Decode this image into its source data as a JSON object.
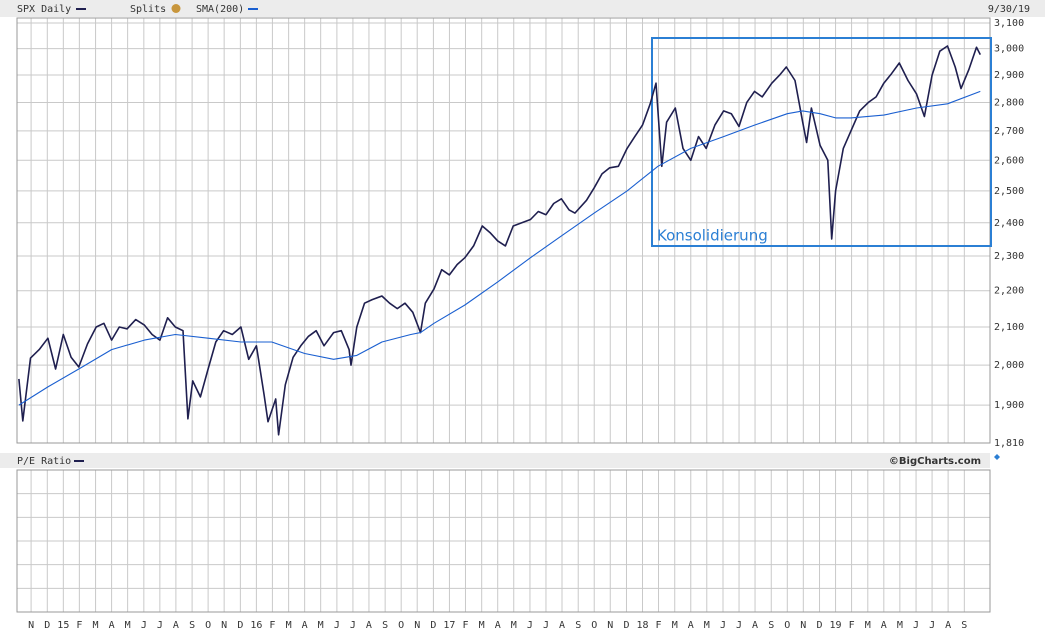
{
  "chart_data": {
    "type": "line",
    "date_label": "9/30/19",
    "splits_label": "Splits",
    "lower_panel_title": "P/E Ratio",
    "source": "©BigCharts.com",
    "annotation": "Konsolidierung",
    "log_scale": true,
    "grid": true,
    "xlim": [
      2014.76,
      2019.8
    ],
    "ylim": [
      1810,
      3100
    ],
    "yticks": [
      {
        "value": 3100,
        "label": "3,100"
      },
      {
        "value": 3000,
        "label": "3,000"
      },
      {
        "value": 2900,
        "label": "2,900"
      },
      {
        "value": 2800,
        "label": "2,800"
      },
      {
        "value": 2700,
        "label": "2,700"
      },
      {
        "value": 2600,
        "label": "2,600"
      },
      {
        "value": 2500,
        "label": "2,500"
      },
      {
        "value": 2400,
        "label": "2,400"
      },
      {
        "value": 2300,
        "label": "2,300"
      },
      {
        "value": 2200,
        "label": "2,200"
      },
      {
        "value": 2100,
        "label": "2,100"
      },
      {
        "value": 2000,
        "label": "2,000"
      },
      {
        "value": 1900,
        "label": "1,900"
      },
      {
        "value": 1810,
        "label": "1,810"
      }
    ],
    "xticks": [
      {
        "value": 2014.833,
        "label": "N"
      },
      {
        "value": 2014.917,
        "label": "D"
      },
      {
        "value": 2015.0,
        "label": "15"
      },
      {
        "value": 2015.083,
        "label": "F"
      },
      {
        "value": 2015.167,
        "label": "M"
      },
      {
        "value": 2015.25,
        "label": "A"
      },
      {
        "value": 2015.333,
        "label": "M"
      },
      {
        "value": 2015.417,
        "label": "J"
      },
      {
        "value": 2015.5,
        "label": "J"
      },
      {
        "value": 2015.583,
        "label": "A"
      },
      {
        "value": 2015.667,
        "label": "S"
      },
      {
        "value": 2015.75,
        "label": "O"
      },
      {
        "value": 2015.833,
        "label": "N"
      },
      {
        "value": 2015.917,
        "label": "D"
      },
      {
        "value": 2016.0,
        "label": "16"
      },
      {
        "value": 2016.083,
        "label": "F"
      },
      {
        "value": 2016.167,
        "label": "M"
      },
      {
        "value": 2016.25,
        "label": "A"
      },
      {
        "value": 2016.333,
        "label": "M"
      },
      {
        "value": 2016.417,
        "label": "J"
      },
      {
        "value": 2016.5,
        "label": "J"
      },
      {
        "value": 2016.583,
        "label": "A"
      },
      {
        "value": 2016.667,
        "label": "S"
      },
      {
        "value": 2016.75,
        "label": "O"
      },
      {
        "value": 2016.833,
        "label": "N"
      },
      {
        "value": 2016.917,
        "label": "D"
      },
      {
        "value": 2017.0,
        "label": "17"
      },
      {
        "value": 2017.083,
        "label": "F"
      },
      {
        "value": 2017.167,
        "label": "M"
      },
      {
        "value": 2017.25,
        "label": "A"
      },
      {
        "value": 2017.333,
        "label": "M"
      },
      {
        "value": 2017.417,
        "label": "J"
      },
      {
        "value": 2017.5,
        "label": "J"
      },
      {
        "value": 2017.583,
        "label": "A"
      },
      {
        "value": 2017.667,
        "label": "S"
      },
      {
        "value": 2017.75,
        "label": "O"
      },
      {
        "value": 2017.833,
        "label": "N"
      },
      {
        "value": 2017.917,
        "label": "D"
      },
      {
        "value": 2018.0,
        "label": "18"
      },
      {
        "value": 2018.083,
        "label": "F"
      },
      {
        "value": 2018.167,
        "label": "M"
      },
      {
        "value": 2018.25,
        "label": "A"
      },
      {
        "value": 2018.333,
        "label": "M"
      },
      {
        "value": 2018.417,
        "label": "J"
      },
      {
        "value": 2018.5,
        "label": "J"
      },
      {
        "value": 2018.583,
        "label": "A"
      },
      {
        "value": 2018.667,
        "label": "S"
      },
      {
        "value": 2018.75,
        "label": "O"
      },
      {
        "value": 2018.833,
        "label": "N"
      },
      {
        "value": 2018.917,
        "label": "D"
      },
      {
        "value": 2019.0,
        "label": "19"
      },
      {
        "value": 2019.083,
        "label": "F"
      },
      {
        "value": 2019.167,
        "label": "M"
      },
      {
        "value": 2019.25,
        "label": "A"
      },
      {
        "value": 2019.333,
        "label": "M"
      },
      {
        "value": 2019.417,
        "label": "J"
      },
      {
        "value": 2019.5,
        "label": "J"
      },
      {
        "value": 2019.583,
        "label": "A"
      },
      {
        "value": 2019.667,
        "label": "S"
      }
    ],
    "series": [
      {
        "name": "SPX Daily",
        "color": "#1f1f4f",
        "x": [
          2014.77,
          2014.79,
          2014.83,
          2014.875,
          2014.92,
          2014.96,
          2015.0,
          2015.04,
          2015.08,
          2015.125,
          2015.17,
          2015.21,
          2015.25,
          2015.29,
          2015.33,
          2015.375,
          2015.42,
          2015.46,
          2015.5,
          2015.54,
          2015.58,
          2015.62,
          2015.645,
          2015.67,
          2015.71,
          2015.75,
          2015.79,
          2015.83,
          2015.875,
          2015.92,
          2015.96,
          2016.0,
          2016.04,
          2016.06,
          2016.1,
          2016.115,
          2016.15,
          2016.19,
          2016.23,
          2016.27,
          2016.31,
          2016.35,
          2016.4,
          2016.44,
          2016.48,
          2016.49,
          2016.52,
          2016.56,
          2016.6,
          2016.65,
          2016.69,
          2016.73,
          2016.77,
          2016.81,
          2016.85,
          2016.875,
          2016.92,
          2016.96,
          2017.0,
          2017.04,
          2017.08,
          2017.125,
          2017.17,
          2017.21,
          2017.25,
          2017.29,
          2017.33,
          2017.375,
          2017.42,
          2017.46,
          2017.5,
          2017.54,
          2017.58,
          2017.62,
          2017.65,
          2017.71,
          2017.75,
          2017.79,
          2017.83,
          2017.875,
          2017.92,
          2017.96,
          2018.0,
          2018.04,
          2018.07,
          2018.1,
          2018.125,
          2018.17,
          2018.21,
          2018.25,
          2018.29,
          2018.33,
          2018.375,
          2018.42,
          2018.46,
          2018.5,
          2018.54,
          2018.58,
          2018.62,
          2018.67,
          2018.71,
          2018.745,
          2018.79,
          2018.83,
          2018.85,
          2018.875,
          2018.92,
          2018.96,
          2018.98,
          2019.0,
          2019.04,
          2019.08,
          2019.125,
          2019.17,
          2019.21,
          2019.25,
          2019.29,
          2019.33,
          2019.375,
          2019.42,
          2019.46,
          2019.5,
          2019.54,
          2019.58,
          2019.62,
          2019.65,
          2019.69,
          2019.73,
          2019.75
        ],
        "values": [
          1965,
          1862,
          2018,
          2040,
          2070,
          1990,
          2080,
          2020,
          1995,
          2055,
          2100,
          2110,
          2065,
          2100,
          2095,
          2120,
          2105,
          2080,
          2065,
          2125,
          2100,
          2090,
          1867,
          1960,
          1920,
          1990,
          2060,
          2090,
          2080,
          2100,
          2015,
          2050,
          1925,
          1860,
          1915,
          1829,
          1950,
          2020,
          2050,
          2075,
          2090,
          2050,
          2085,
          2090,
          2040,
          2000,
          2100,
          2165,
          2175,
          2185,
          2165,
          2150,
          2165,
          2140,
          2085,
          2165,
          2205,
          2260,
          2245,
          2275,
          2295,
          2330,
          2390,
          2370,
          2345,
          2330,
          2390,
          2400,
          2410,
          2435,
          2425,
          2460,
          2475,
          2440,
          2430,
          2470,
          2510,
          2555,
          2575,
          2580,
          2640,
          2680,
          2720,
          2795,
          2870,
          2580,
          2730,
          2780,
          2640,
          2600,
          2680,
          2640,
          2720,
          2770,
          2760,
          2715,
          2800,
          2840,
          2820,
          2870,
          2900,
          2930,
          2880,
          2730,
          2660,
          2780,
          2650,
          2600,
          2351,
          2500,
          2640,
          2700,
          2770,
          2800,
          2820,
          2870,
          2905,
          2945,
          2880,
          2830,
          2750,
          2900,
          2990,
          3010,
          2930,
          2850,
          2920,
          3005,
          2977
        ]
      },
      {
        "name": "SMA(200)",
        "color": "#1a5fd0",
        "x": [
          2014.77,
          2014.92,
          2015.08,
          2015.25,
          2015.42,
          2015.58,
          2015.75,
          2015.92,
          2016.08,
          2016.25,
          2016.4,
          2016.52,
          2016.65,
          2016.8,
          2016.85,
          2016.92,
          2017.08,
          2017.25,
          2017.42,
          2017.58,
          2017.75,
          2017.92,
          2018.08,
          2018.25,
          2018.42,
          2018.58,
          2018.75,
          2018.83,
          2018.92,
          2019.0,
          2019.08,
          2019.25,
          2019.42,
          2019.58,
          2019.75
        ],
        "values": [
          1900,
          1945,
          1990,
          2040,
          2065,
          2080,
          2070,
          2060,
          2060,
          2030,
          2015,
          2025,
          2060,
          2080,
          2085,
          2110,
          2160,
          2225,
          2295,
          2360,
          2430,
          2500,
          2580,
          2640,
          2680,
          2720,
          2760,
          2770,
          2760,
          2745,
          2745,
          2755,
          2780,
          2795,
          2840
        ]
      }
    ]
  }
}
